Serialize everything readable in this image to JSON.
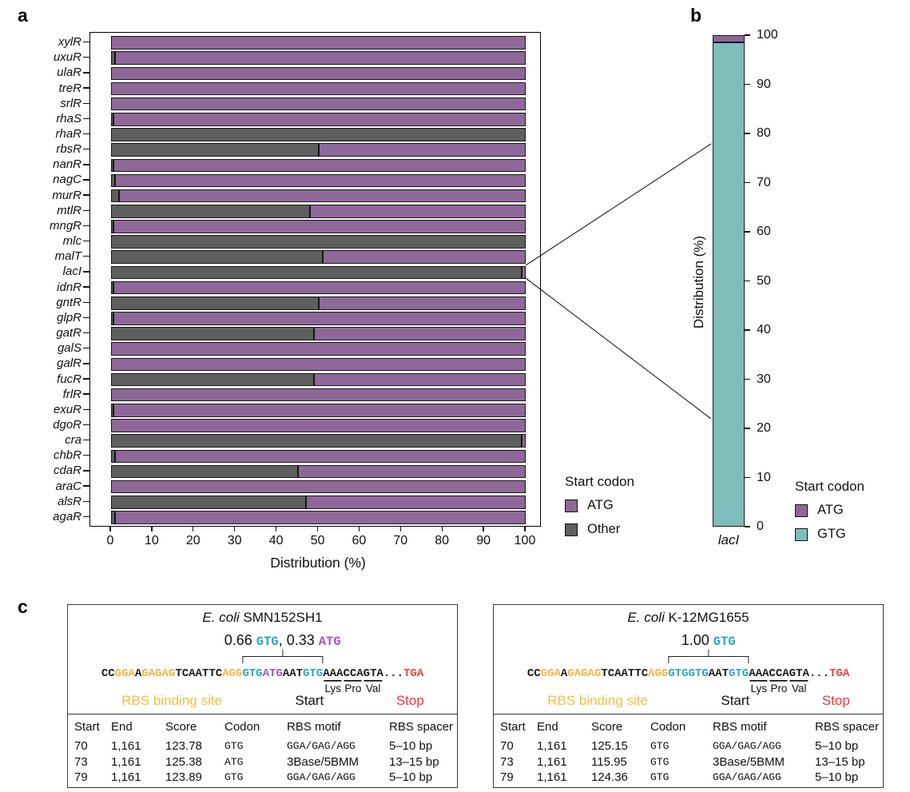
{
  "panels": {
    "a_label": "a",
    "b_label": "b",
    "c_label": "c"
  },
  "colors": {
    "atg_purple": "#8F6899",
    "other_gray": "#5E5E5E",
    "gtg_teal": "#7DBEBA",
    "seq_orange": "#F6B53F",
    "seq_teal": "#2AA6B9",
    "seq_purple": "#A94FC9",
    "seq_red": "#F63B3B",
    "zone_orange": "#F9BC45",
    "zone_red": "#F8353E"
  },
  "panel_a": {
    "x_axis_title": "Distribution (%)",
    "legend": {
      "title": "Start codon",
      "items": [
        {
          "label": "ATG",
          "color": "#8F6899"
        },
        {
          "label": "Other",
          "color": "#5E5E5E"
        }
      ]
    }
  },
  "panel_b": {
    "category_label": "lacI",
    "y_axis_title": "Distribution (%)",
    "legend": {
      "title": "Start codon",
      "items": [
        {
          "label": "ATG",
          "color": "#8F6899"
        },
        {
          "label": "GTG",
          "color": "#7DBEBA"
        }
      ]
    }
  },
  "chart_data": [
    {
      "id": "panel-a",
      "type": "bar",
      "orientation": "horizontal",
      "stacked": true,
      "title": "",
      "xlabel": "Distribution (%)",
      "ylabel": "",
      "xlim": [
        0,
        100
      ],
      "xticks": [
        0,
        10,
        20,
        30,
        40,
        50,
        60,
        70,
        80,
        90,
        100
      ],
      "grid": false,
      "legend_title": "Start codon",
      "legend_position": "bottom-right",
      "categories": [
        "xylR",
        "uxuR",
        "ulaR",
        "treR",
        "srlR",
        "rhaS",
        "rhaR",
        "rbsR",
        "nanR",
        "nagC",
        "murR",
        "mtlR",
        "mngR",
        "mlc",
        "malT",
        "lacI",
        "idnR",
        "gntR",
        "glpR",
        "gatR",
        "galS",
        "galR",
        "fucR",
        "frlR",
        "exuR",
        "dgoR",
        "cra",
        "chbR",
        "cdaR",
        "araC",
        "alsR",
        "agaR"
      ],
      "series": [
        {
          "name": "Other",
          "color": "#5E5E5E",
          "values": [
            0,
            1,
            0,
            0,
            0,
            0.5,
            100,
            50,
            0.5,
            1,
            2,
            48,
            0.5,
            100,
            51,
            99,
            0.5,
            50,
            0.5,
            49,
            0,
            0,
            49,
            0,
            0.5,
            0,
            99,
            1,
            45,
            0,
            47,
            1
          ]
        },
        {
          "name": "ATG",
          "color": "#8F6899",
          "values": [
            100,
            99,
            100,
            100,
            100,
            99.5,
            0,
            50,
            99.5,
            99,
            98,
            52,
            99.5,
            0,
            49,
            1,
            99.5,
            50,
            99.5,
            51,
            100,
            100,
            51,
            100,
            99.5,
            100,
            1,
            99,
            55,
            100,
            53,
            99
          ]
        }
      ]
    },
    {
      "id": "panel-b",
      "type": "bar",
      "orientation": "vertical",
      "stacked": true,
      "title": "",
      "xlabel": "",
      "ylabel": "Distribution (%)",
      "ylim": [
        0,
        100
      ],
      "yticks": [
        0,
        10,
        20,
        30,
        40,
        50,
        60,
        70,
        80,
        90,
        100
      ],
      "grid": false,
      "legend_title": "Start codon",
      "legend_position": "bottom-right",
      "categories": [
        "lacI"
      ],
      "series": [
        {
          "name": "GTG",
          "color": "#7DBEBA",
          "values": [
            98.5
          ]
        },
        {
          "name": "ATG",
          "color": "#8F6899",
          "values": [
            1.5
          ]
        }
      ]
    }
  ],
  "panel_c": {
    "boxes": [
      {
        "title_italic": "E. coli",
        "title_rest": " SMN152SH1",
        "freq_segments": [
          {
            "text": "0.66 ",
            "style": "num",
            "color": "#111111"
          },
          {
            "text": "GTG",
            "style": "codon",
            "color": "#2AA6B9"
          },
          {
            "text": ", 0.33 ",
            "style": "num",
            "color": "#111111"
          },
          {
            "text": "ATG",
            "style": "codon",
            "color": "#A94FC9"
          }
        ],
        "sequence_segments": [
          {
            "text": "CC",
            "c": "k"
          },
          {
            "text": "GGA",
            "c": "o"
          },
          {
            "text": "A",
            "c": "k"
          },
          {
            "text": "GAGAG",
            "c": "o"
          },
          {
            "text": "TCAATTC",
            "c": "k"
          },
          {
            "text": "AGG",
            "c": "o"
          },
          {
            "text": "GTG",
            "c": "t"
          },
          {
            "text": "ATG",
            "c": "p"
          },
          {
            "text": "AAT",
            "c": "k"
          },
          {
            "text": "GTG",
            "c": "t"
          },
          {
            "text": "AAA",
            "c": "k",
            "u": true
          },
          {
            "text": "CCA",
            "c": "k",
            "u": true
          },
          {
            "text": "GTA",
            "c": "k",
            "u": true
          },
          {
            "text": "...",
            "c": "k"
          },
          {
            "text": "TGA",
            "c": "r"
          }
        ],
        "bracket": {
          "start_ch": 21,
          "end_ch": 33
        },
        "aa_labels": [
          {
            "text": "Lys",
            "ch": 34.5
          },
          {
            "text": "Pro",
            "ch": 37.5
          },
          {
            "text": "Val",
            "ch": 40.5
          }
        ],
        "zone_labels": [
          {
            "text": "RBS binding site",
            "color": "#F9BC45",
            "ch": 10.5
          },
          {
            "text": "Start",
            "color": "#111111",
            "ch": 31
          },
          {
            "text": "Stop",
            "color": "#F8353E",
            "ch": 46
          }
        ],
        "table": {
          "headers": [
            "Start",
            "End",
            "Score",
            "Codon",
            "RBS motif",
            "RBS spacer"
          ],
          "rows": [
            {
              "start": "70",
              "end": "1,161",
              "score": "123.78",
              "codon": "GTG",
              "motif": "GGA/GAG/AGG",
              "motif_mono": true,
              "spacer": "5–10 bp"
            },
            {
              "start": "73",
              "end": "1,161",
              "score": "125.38",
              "codon": "ATG",
              "motif": "3Base/5BMM",
              "motif_mono": false,
              "spacer": "13–15 bp"
            },
            {
              "start": "79",
              "end": "1,161",
              "score": "123.89",
              "codon": "GTG",
              "motif": "GGA/GAG/AGG",
              "motif_mono": true,
              "spacer": "5–10 bp"
            }
          ]
        }
      },
      {
        "title_italic": "E. coli",
        "title_rest": " K-12MG1655",
        "freq_segments": [
          {
            "text": "1.00 ",
            "style": "num",
            "color": "#111111"
          },
          {
            "text": "GTG",
            "style": "codon",
            "color": "#2AA6B9"
          }
        ],
        "sequence_segments": [
          {
            "text": "CC",
            "c": "k"
          },
          {
            "text": "GGA",
            "c": "o"
          },
          {
            "text": "A",
            "c": "k"
          },
          {
            "text": "GAGAG",
            "c": "o"
          },
          {
            "text": "TCAATTC",
            "c": "k"
          },
          {
            "text": "AGG",
            "c": "o"
          },
          {
            "text": "GTGGTG",
            "c": "t"
          },
          {
            "text": "AAT",
            "c": "k"
          },
          {
            "text": "GTG",
            "c": "t"
          },
          {
            "text": "AAA",
            "c": "k",
            "u": true
          },
          {
            "text": "CCA",
            "c": "k",
            "u": true
          },
          {
            "text": "GTA",
            "c": "k",
            "u": true
          },
          {
            "text": "...",
            "c": "k"
          },
          {
            "text": "TGA",
            "c": "r"
          }
        ],
        "bracket": {
          "start_ch": 21,
          "end_ch": 33
        },
        "aa_labels": [
          {
            "text": "Lys",
            "ch": 34.5
          },
          {
            "text": "Pro",
            "ch": 37.5
          },
          {
            "text": "Val",
            "ch": 40.5
          }
        ],
        "zone_labels": [
          {
            "text": "RBS binding site",
            "color": "#F9BC45",
            "ch": 10.5
          },
          {
            "text": "Start",
            "color": "#111111",
            "ch": 31
          },
          {
            "text": "Stop",
            "color": "#F8353E",
            "ch": 46
          }
        ],
        "table": {
          "headers": [
            "Start",
            "End",
            "Score",
            "Codon",
            "RBS motif",
            "RBS spacer"
          ],
          "rows": [
            {
              "start": "70",
              "end": "1,161",
              "score": "125.15",
              "codon": "GTG",
              "motif": "GGA/GAG/AGG",
              "motif_mono": true,
              "spacer": "5–10 bp"
            },
            {
              "start": "73",
              "end": "1,161",
              "score": "115.95",
              "codon": "GTG",
              "motif": "3Base/5BMM",
              "motif_mono": false,
              "spacer": "13–15 bp"
            },
            {
              "start": "79",
              "end": "1,161",
              "score": "124.36",
              "codon": "GTG",
              "motif": "GGA/GAG/AGG",
              "motif_mono": true,
              "spacer": "5–10 bp"
            }
          ]
        }
      }
    ]
  }
}
